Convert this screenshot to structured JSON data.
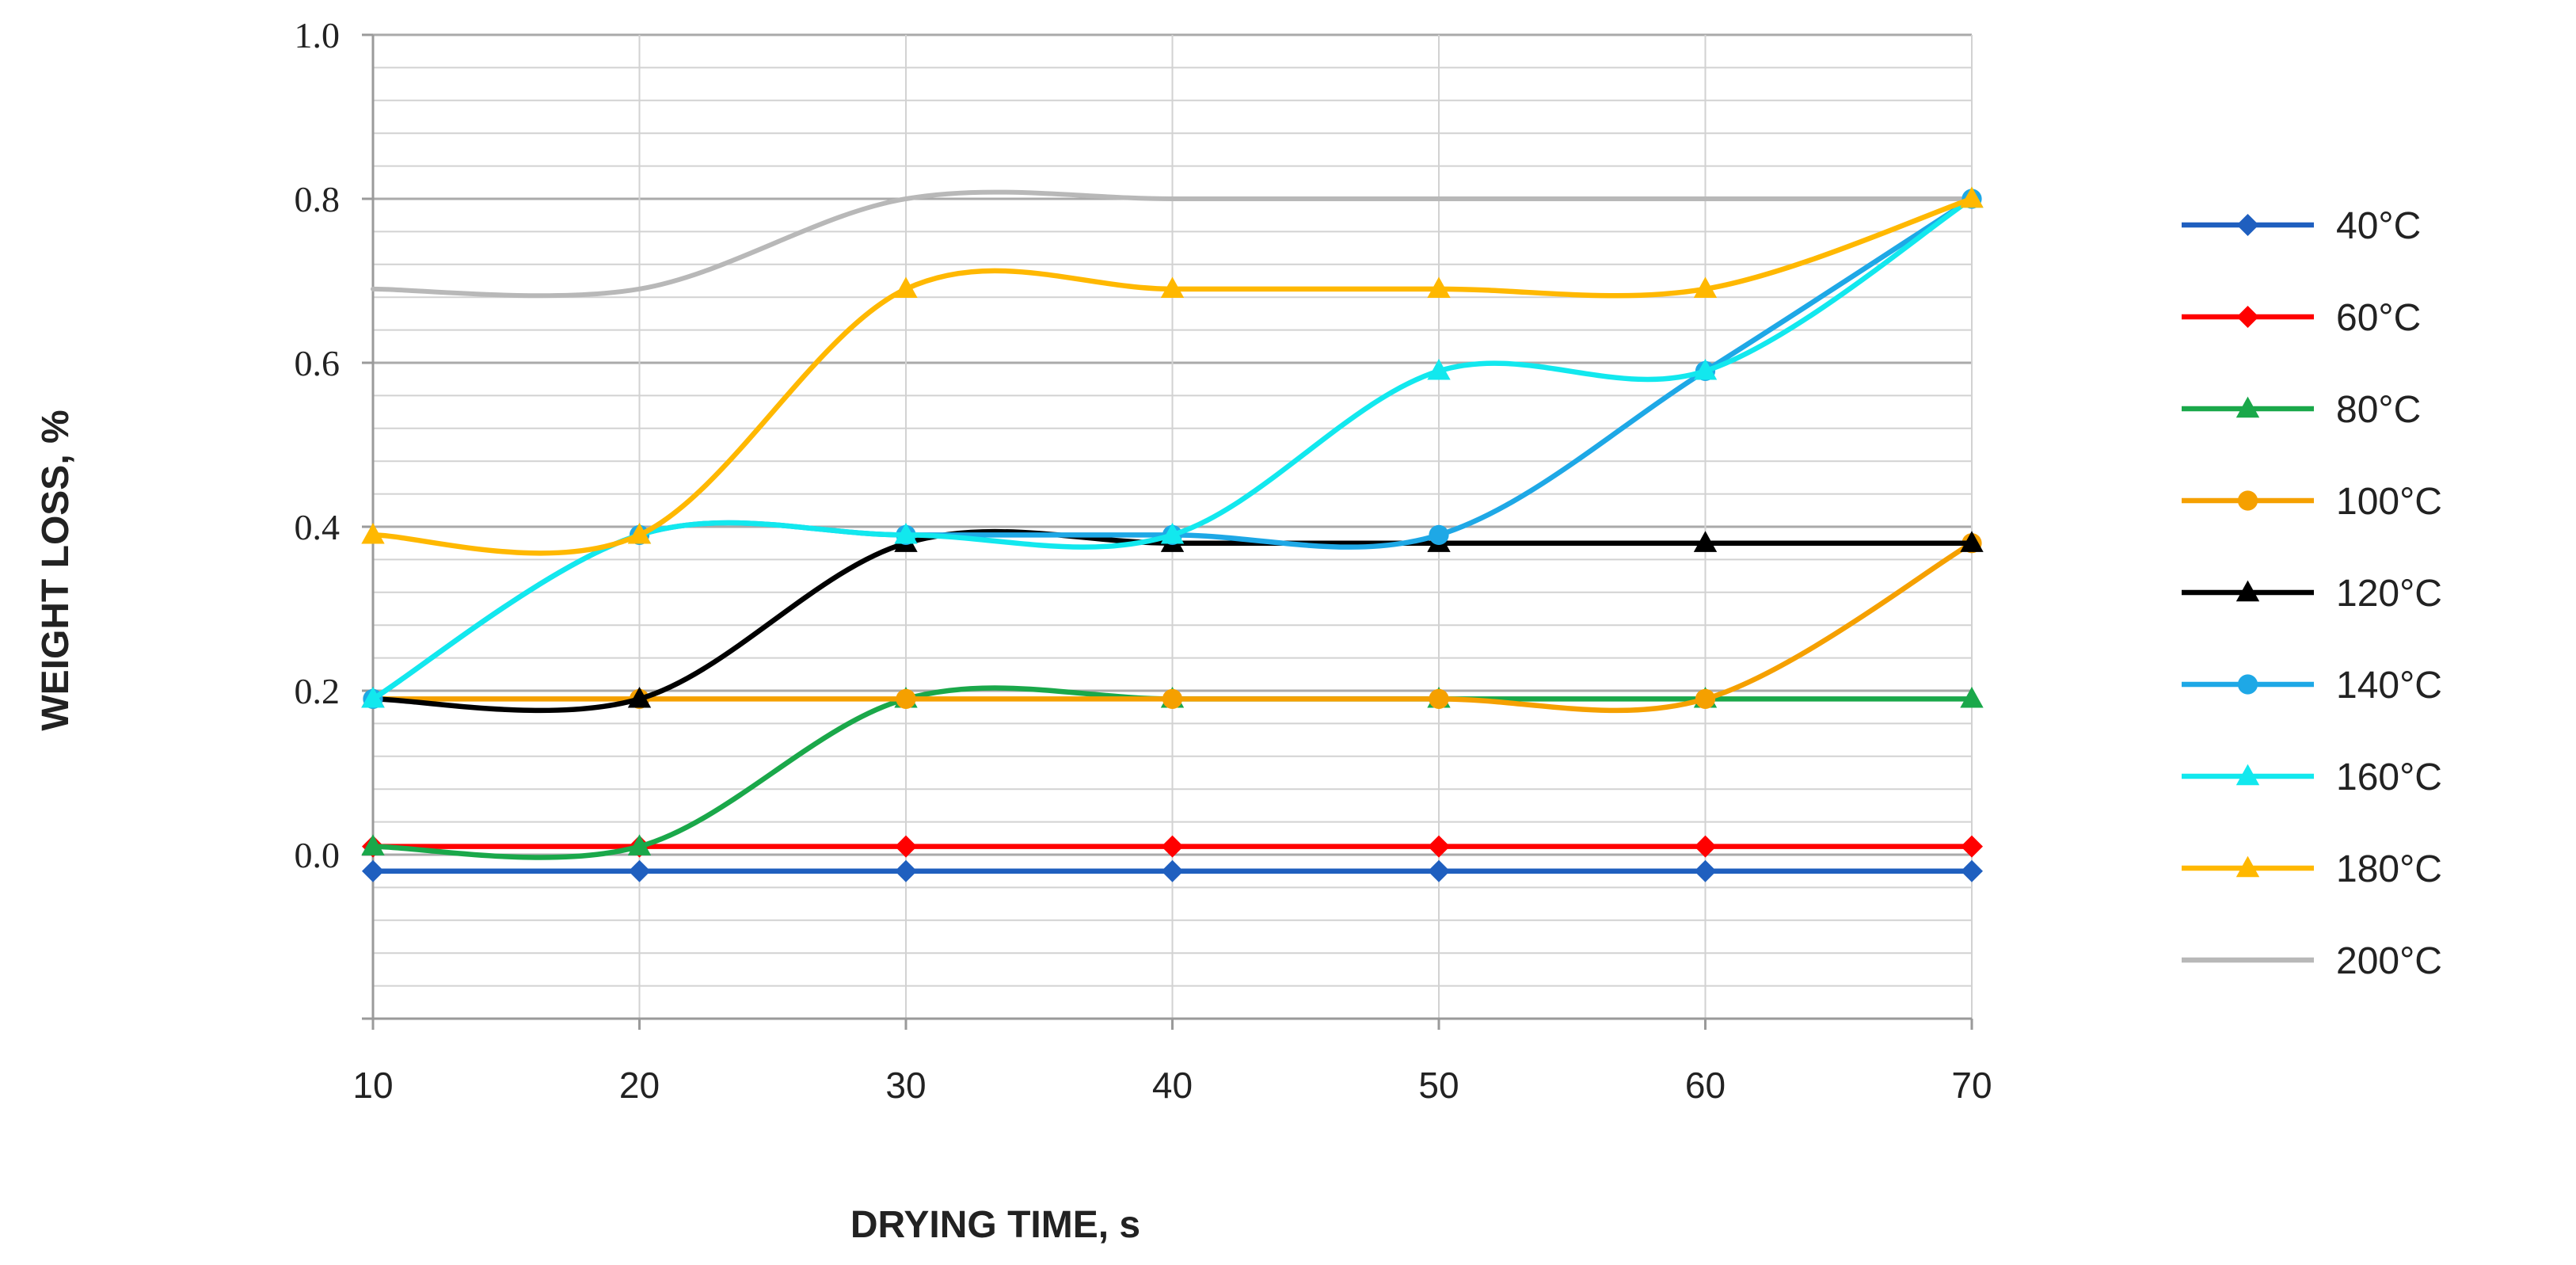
{
  "chart_data": {
    "type": "line",
    "title": "",
    "xlabel": "DRYING TIME, s",
    "ylabel": "WEIGHT LOSS, %",
    "x": [
      10,
      20,
      30,
      40,
      50,
      60,
      70
    ],
    "xlim": [
      10,
      70
    ],
    "ylim": [
      -0.2,
      1.0
    ],
    "y_ticks": [
      0.0,
      0.2,
      0.4,
      0.6,
      0.8,
      1.0
    ],
    "y_tick_labels": [
      "0.0",
      "0.2",
      "0.4",
      "0.6",
      "0.8",
      "1.0"
    ],
    "x_tick_labels": [
      "10",
      "20",
      "30",
      "40",
      "50",
      "60",
      "70"
    ],
    "grid": true,
    "legend_position": "right",
    "series": [
      {
        "name": "40°C",
        "color": "#1f5fbf",
        "marker": "diamond",
        "values": [
          -0.02,
          -0.02,
          -0.02,
          -0.02,
          -0.02,
          -0.02,
          -0.02
        ]
      },
      {
        "name": "60°C",
        "color": "#ff0000",
        "marker": "diamond",
        "values": [
          0.01,
          0.01,
          0.01,
          0.01,
          0.01,
          0.01,
          0.01
        ]
      },
      {
        "name": "80°C",
        "color": "#1aa84a",
        "marker": "triangle",
        "values": [
          0.01,
          0.01,
          0.19,
          0.19,
          0.19,
          0.19,
          0.19
        ]
      },
      {
        "name": "100°C",
        "color": "#f5a000",
        "marker": "circle",
        "values": [
          0.19,
          0.19,
          0.19,
          0.19,
          0.19,
          0.19,
          0.38
        ]
      },
      {
        "name": "120°C",
        "color": "#000000",
        "marker": "triangle",
        "values": [
          0.19,
          0.19,
          0.38,
          0.38,
          0.38,
          0.38,
          0.38
        ]
      },
      {
        "name": "140°C",
        "color": "#1ea8e6",
        "marker": "circle",
        "values": [
          0.19,
          0.39,
          0.39,
          0.39,
          0.39,
          0.59,
          0.8
        ]
      },
      {
        "name": "160°C",
        "color": "#12e8ee",
        "marker": "triangle",
        "values": [
          0.19,
          0.39,
          0.39,
          0.39,
          0.59,
          0.59,
          0.8
        ]
      },
      {
        "name": "180°C",
        "color": "#ffb800",
        "marker": "triangle",
        "values": [
          0.39,
          0.39,
          0.69,
          0.69,
          0.69,
          0.69,
          0.8
        ]
      },
      {
        "name": "200°C",
        "color": "#b8b8b8",
        "marker": "none",
        "values": [
          0.69,
          0.69,
          0.8,
          0.8,
          0.8,
          0.8,
          0.8
        ]
      }
    ]
  }
}
